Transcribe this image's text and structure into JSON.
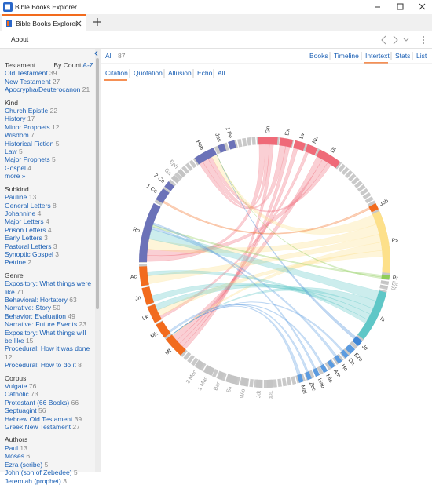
{
  "window": {
    "title": "Bible Books Explorer"
  },
  "tab": {
    "title": "Bible Books Explorer"
  },
  "toolbar": {
    "about": "About"
  },
  "sidebar": {
    "sort": [
      "By Count",
      "A-Z"
    ],
    "sections": [
      {
        "heading": "Testament",
        "items": [
          {
            "label": "Old Testament",
            "count": 39
          },
          {
            "label": "New Testament",
            "count": 27
          },
          {
            "label": "Apocrypha/Deuterocanon",
            "count": 21
          }
        ]
      },
      {
        "heading": "Kind",
        "items": [
          {
            "label": "Church Epistle",
            "count": 22
          },
          {
            "label": "History",
            "count": 17
          },
          {
            "label": "Minor Prophets",
            "count": 12
          },
          {
            "label": "Wisdom",
            "count": 7
          },
          {
            "label": "Historical Fiction",
            "count": 5
          },
          {
            "label": "Law",
            "count": 5
          },
          {
            "label": "Major Prophets",
            "count": 5
          },
          {
            "label": "Gospel",
            "count": 4
          }
        ],
        "more": "more »"
      },
      {
        "heading": "Subkind",
        "items": [
          {
            "label": "Pauline",
            "count": 13
          },
          {
            "label": "General Letters",
            "count": 8
          },
          {
            "label": "Johannine",
            "count": 4
          },
          {
            "label": "Major Letters",
            "count": 4
          },
          {
            "label": "Prison Letters",
            "count": 4
          },
          {
            "label": "Early Letters",
            "count": 3
          },
          {
            "label": "Pastoral Letters",
            "count": 3
          },
          {
            "label": "Synoptic Gospel",
            "count": 3
          },
          {
            "label": "Petrine",
            "count": 2
          }
        ]
      },
      {
        "heading": "Genre",
        "items": [
          {
            "label": "Expository: What things were like",
            "count": 71
          },
          {
            "label": "Behavioral: Hortatory",
            "count": 63
          },
          {
            "label": "Narrative: Story",
            "count": 50
          },
          {
            "label": "Behavior: Evaluation",
            "count": 49
          },
          {
            "label": "Narrative: Future Events",
            "count": 23
          },
          {
            "label": "Expository: What things will be like",
            "count": 15
          },
          {
            "label": "Procedural: How it was done",
            "count": 12
          },
          {
            "label": "Procedural: How to do it",
            "count": 8
          }
        ]
      },
      {
        "heading": "Corpus",
        "items": [
          {
            "label": "Vulgate",
            "count": 76
          },
          {
            "label": "Catholic",
            "count": 73
          },
          {
            "label": "Protestant (66 Books)",
            "count": 66
          },
          {
            "label": "Septuagint",
            "count": 56
          },
          {
            "label": "Hebrew Old Testament",
            "count": 39
          },
          {
            "label": "Greek New Testament",
            "count": 27
          }
        ]
      },
      {
        "heading": "Authors",
        "items": [
          {
            "label": "Paul",
            "count": 13
          },
          {
            "label": "Moses",
            "count": 6
          },
          {
            "label": "Ezra (scribe)",
            "count": 5
          },
          {
            "label": "John (son of Zebedee)",
            "count": 5
          },
          {
            "label": "Jeremiah (prophet)",
            "count": 3
          }
        ]
      }
    ]
  },
  "nav": {
    "all": "All",
    "count": 87,
    "views": [
      "Books",
      "Timeline",
      "Intertext",
      "Stats",
      "List"
    ]
  },
  "subtabs": {
    "items": [
      "Citation",
      "Quotation",
      "Allusion",
      "Echo",
      "All"
    ]
  },
  "chord": {
    "labels": [
      "Gn",
      "Ex",
      "Lv",
      "Nu",
      "Dt",
      "Job",
      "Ps",
      "Pr",
      "Ec",
      "So",
      "Is",
      "Je",
      "Eze",
      "Dn",
      "Ho",
      "Am",
      "Mic",
      "Hab",
      "Zec",
      "Mal",
      "Tob",
      "Jdt",
      "Wis",
      "Sir",
      "Bar",
      "1 Mac",
      "2 Mac",
      "Mt",
      "Mk",
      "Lk",
      "Jn",
      "Ac",
      "Ro",
      "1 Co",
      "2 Co",
      "Ga",
      "Eph",
      "Heb",
      "Jas",
      "1 Pe"
    ]
  }
}
